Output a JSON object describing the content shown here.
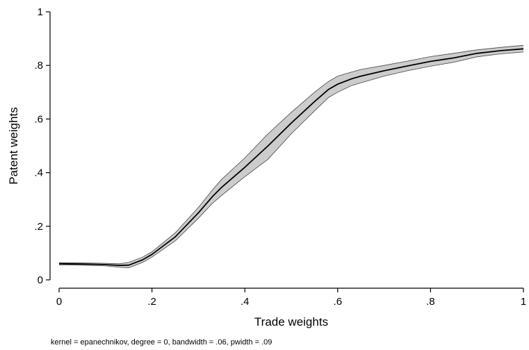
{
  "chart_data": {
    "type": "line",
    "title": "",
    "xlabel": "Trade weights",
    "ylabel": "Patent weights",
    "note": "kernel = epanechnikov, degree = 0, bandwidth = .06, pwidth = .09",
    "xlim": [
      0,
      1
    ],
    "ylim": [
      0,
      1
    ],
    "x_ticks": [
      {
        "value": 0,
        "label": "0"
      },
      {
        "value": 0.2,
        "label": ".2"
      },
      {
        "value": 0.4,
        "label": ".4"
      },
      {
        "value": 0.6,
        "label": ".6"
      },
      {
        "value": 0.8,
        "label": ".8"
      },
      {
        "value": 1,
        "label": "1"
      }
    ],
    "y_ticks": [
      {
        "value": 0,
        "label": "0"
      },
      {
        "value": 0.2,
        "label": ".2"
      },
      {
        "value": 0.4,
        "label": ".4"
      },
      {
        "value": 0.6,
        "label": ".6"
      },
      {
        "value": 0.8,
        "label": ".8"
      },
      {
        "value": 1,
        "label": "1"
      }
    ],
    "grid": false,
    "colors": {
      "line": "#000000",
      "band": "#cccccc",
      "band_edge": "#444444"
    },
    "series": [
      {
        "x": [
          0,
          0.05,
          0.1,
          0.13,
          0.15,
          0.18,
          0.2,
          0.25,
          0.3,
          0.33,
          0.35,
          0.4,
          0.45,
          0.5,
          0.55,
          0.58,
          0.6,
          0.63,
          0.65,
          0.7,
          0.75,
          0.8,
          0.85,
          0.9,
          0.95,
          1.0
        ],
        "y": [
          0.06,
          0.059,
          0.057,
          0.054,
          0.055,
          0.075,
          0.095,
          0.16,
          0.25,
          0.31,
          0.345,
          0.42,
          0.5,
          0.585,
          0.665,
          0.71,
          0.73,
          0.75,
          0.76,
          0.78,
          0.798,
          0.815,
          0.828,
          0.845,
          0.855,
          0.862
        ],
        "lower": [
          0.056,
          0.055,
          0.052,
          0.047,
          0.045,
          0.065,
          0.085,
          0.145,
          0.23,
          0.285,
          0.315,
          0.385,
          0.45,
          0.545,
          0.63,
          0.68,
          0.7,
          0.725,
          0.735,
          0.76,
          0.78,
          0.797,
          0.812,
          0.832,
          0.843,
          0.85
        ],
        "upper": [
          0.064,
          0.063,
          0.062,
          0.06,
          0.065,
          0.085,
          0.105,
          0.175,
          0.27,
          0.335,
          0.375,
          0.455,
          0.545,
          0.625,
          0.7,
          0.74,
          0.76,
          0.775,
          0.785,
          0.8,
          0.816,
          0.833,
          0.845,
          0.858,
          0.867,
          0.875
        ]
      }
    ]
  }
}
